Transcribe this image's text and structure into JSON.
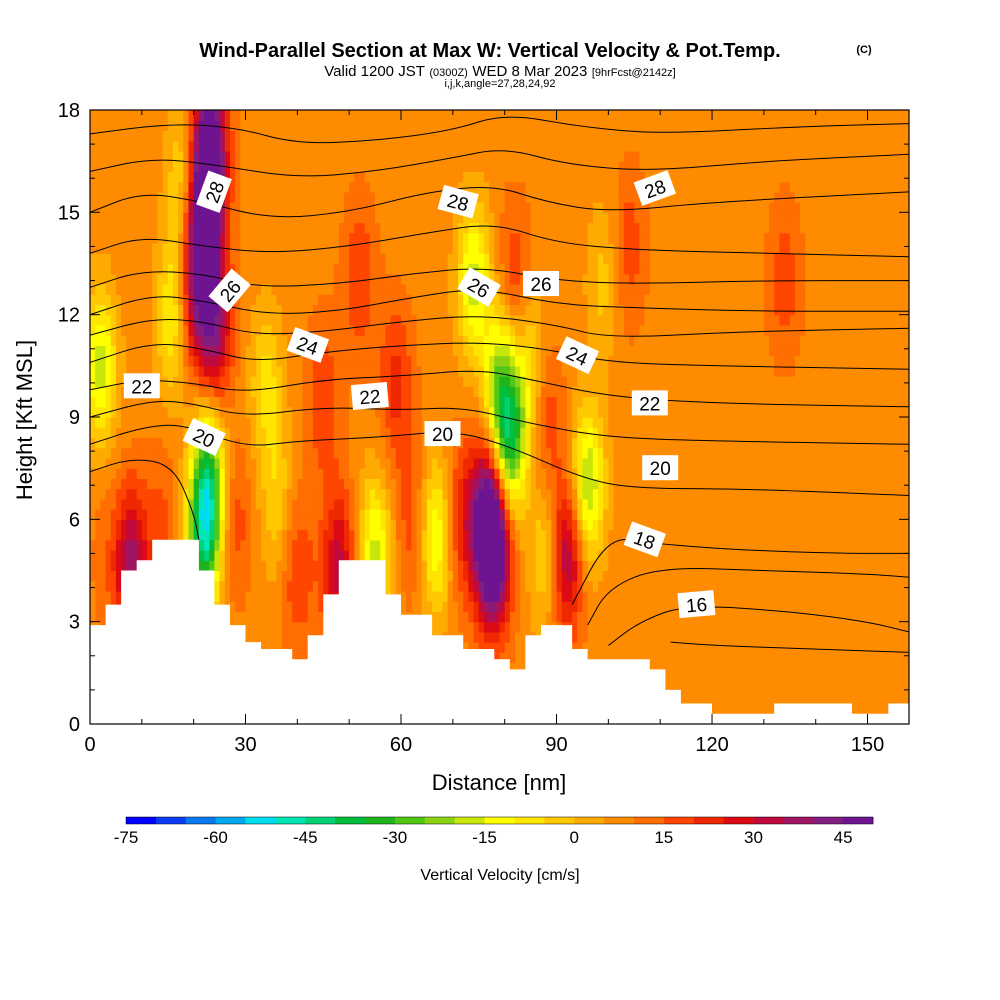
{
  "title": {
    "main": "Wind-Parallel Section at Max W: Vertical Velocity & Pot.Temp.",
    "main_suffix": "(C)",
    "valid_prefix": "Valid 1200 JST",
    "valid_utc": "(0300Z)",
    "valid_date": "WED 8 Mar 2023",
    "fcst": "[9hrFcst@2142z]",
    "ijk": "i,j,k,angle=27,28,24,92"
  },
  "chart_data": {
    "type": "heatmap",
    "xlabel": "Distance [nm]",
    "ylabel": "Height [Kft MSL]",
    "xlim": [
      0,
      158
    ],
    "ylim": [
      0,
      18
    ],
    "x_ticks": [
      "0",
      "30",
      "60",
      "90",
      "120",
      "150"
    ],
    "y_ticks": [
      "0",
      "3",
      "6",
      "9",
      "12",
      "15",
      "18"
    ],
    "x_tick_values": [
      0,
      30,
      60,
      90,
      120,
      150
    ],
    "y_tick_values": [
      0,
      3,
      6,
      9,
      12,
      15,
      18
    ],
    "colorbar": {
      "label": "Vertical Velocity [cm/s]",
      "min": -75,
      "max": 50,
      "step": 5,
      "tick_labels": [
        "-75",
        "-60",
        "-45",
        "-30",
        "-15",
        "0",
        "15",
        "30",
        "45"
      ],
      "tick_values": [
        -75,
        -60,
        -45,
        -30,
        -15,
        0,
        15,
        30,
        45
      ],
      "colors": [
        "#0000ff",
        "#0a3cf5",
        "#0a78f0",
        "#00a8f0",
        "#00dcf0",
        "#00e6b4",
        "#00d278",
        "#00be3c",
        "#1eb41e",
        "#50c814",
        "#8cd214",
        "#c8e60a",
        "#ffff00",
        "#ffe600",
        "#ffc800",
        "#ffaa00",
        "#ff8c00",
        "#ff6e00",
        "#ff4600",
        "#f02800",
        "#dc0a14",
        "#be0a3c",
        "#a01464",
        "#821e82",
        "#6e1491"
      ]
    },
    "updrafts": [
      {
        "x": 3,
        "y": 5.0,
        "w": 4
      },
      {
        "x": 8,
        "y": 4.6,
        "w": 30
      },
      {
        "x": 14,
        "y": 6.0,
        "w": 8
      },
      {
        "x": 20,
        "y": 12.5,
        "w": 20
      },
      {
        "x": 22,
        "y": 14.5,
        "w": 40
      },
      {
        "x": 23,
        "y": 16.8,
        "w": 50
      },
      {
        "x": 24,
        "y": 11.5,
        "w": 30
      },
      {
        "x": 28,
        "y": 6.0,
        "w": 10
      },
      {
        "x": 40,
        "y": 4.5,
        "w": 12
      },
      {
        "x": 45,
        "y": 9.5,
        "w": 12
      },
      {
        "x": 48,
        "y": 4.5,
        "w": 25
      },
      {
        "x": 52,
        "y": 13.0,
        "w": 12
      },
      {
        "x": 59,
        "y": 10.0,
        "w": 14
      },
      {
        "x": 62,
        "y": 6.0,
        "w": 10
      },
      {
        "x": 71,
        "y": 6.0,
        "w": 15
      },
      {
        "x": 76,
        "y": 6.0,
        "w": 30
      },
      {
        "x": 78,
        "y": 5.2,
        "w": 50
      },
      {
        "x": 82,
        "y": 13.0,
        "w": 12
      },
      {
        "x": 88,
        "y": 9.0,
        "w": 12
      },
      {
        "x": 92,
        "y": 5.0,
        "w": 30
      },
      {
        "x": 104,
        "y": 14.0,
        "w": 10
      },
      {
        "x": 134,
        "y": 13.0,
        "w": 10
      }
    ],
    "downdrafts": [
      {
        "x": 2,
        "y": 10.5,
        "w": -25
      },
      {
        "x": 16,
        "y": 12.0,
        "w": -20
      },
      {
        "x": 18,
        "y": 16.0,
        "w": -15
      },
      {
        "x": 22,
        "y": 5.6,
        "w": -45
      },
      {
        "x": 23,
        "y": 7.5,
        "w": -30
      },
      {
        "x": 34,
        "y": 10.0,
        "w": -15
      },
      {
        "x": 36,
        "y": 6.5,
        "w": -12
      },
      {
        "x": 55,
        "y": 5.0,
        "w": -25
      },
      {
        "x": 67,
        "y": 5.5,
        "w": -25
      },
      {
        "x": 74,
        "y": 13.0,
        "w": -25
      },
      {
        "x": 79,
        "y": 10.0,
        "w": -25
      },
      {
        "x": 81,
        "y": 8.3,
        "w": -40
      },
      {
        "x": 85,
        "y": 10.5,
        "w": -15
      },
      {
        "x": 88,
        "y": 5.0,
        "w": -15
      },
      {
        "x": 96,
        "y": 7.0,
        "w": -30
      },
      {
        "x": 99,
        "y": 13.0,
        "w": -10
      }
    ],
    "terrain": [
      [
        0,
        2.9
      ],
      [
        3,
        2.9
      ],
      [
        3,
        3.5
      ],
      [
        6,
        3.5
      ],
      [
        6,
        4.5
      ],
      [
        9,
        4.5
      ],
      [
        9,
        4.8
      ],
      [
        12,
        4.8
      ],
      [
        12,
        5.4
      ],
      [
        21,
        5.4
      ],
      [
        21,
        4.5
      ],
      [
        24,
        4.5
      ],
      [
        24,
        3.5
      ],
      [
        27,
        3.5
      ],
      [
        27,
        2.9
      ],
      [
        30,
        2.9
      ],
      [
        30,
        2.4
      ],
      [
        33,
        2.4
      ],
      [
        33,
        2.2
      ],
      [
        39,
        2.2
      ],
      [
        39,
        1.9
      ],
      [
        42,
        1.9
      ],
      [
        42,
        2.6
      ],
      [
        45,
        2.6
      ],
      [
        45,
        3.8
      ],
      [
        48,
        3.8
      ],
      [
        48,
        4.8
      ],
      [
        57,
        4.8
      ],
      [
        57,
        3.8
      ],
      [
        60,
        3.8
      ],
      [
        60,
        3.2
      ],
      [
        66,
        3.2
      ],
      [
        66,
        2.6
      ],
      [
        72,
        2.6
      ],
      [
        72,
        2.2
      ],
      [
        78,
        2.2
      ],
      [
        78,
        1.9
      ],
      [
        81,
        1.9
      ],
      [
        81,
        1.6
      ],
      [
        84,
        1.6
      ],
      [
        84,
        2.6
      ],
      [
        87,
        2.6
      ],
      [
        87,
        2.9
      ],
      [
        93,
        2.9
      ],
      [
        93,
        2.2
      ],
      [
        96,
        2.2
      ],
      [
        96,
        1.9
      ],
      [
        108,
        1.9
      ],
      [
        108,
        1.6
      ],
      [
        111,
        1.6
      ],
      [
        111,
        1.0
      ],
      [
        114,
        1.0
      ],
      [
        114,
        0.6
      ],
      [
        120,
        0.6
      ],
      [
        120,
        0.3
      ],
      [
        132,
        0.3
      ],
      [
        132,
        0.6
      ],
      [
        147,
        0.6
      ],
      [
        147,
        0.3
      ],
      [
        154,
        0.3
      ],
      [
        154,
        0.6
      ],
      [
        158,
        0.6
      ]
    ],
    "theta_contours": [
      {
        "value": 15,
        "points": [
          [
            112,
            2.4
          ],
          [
            120,
            2.3
          ],
          [
            140,
            2.2
          ],
          [
            158,
            2.1
          ]
        ]
      },
      {
        "value": 16,
        "points": [
          [
            100,
            2.3
          ],
          [
            106,
            3.0
          ],
          [
            115,
            3.5
          ],
          [
            135,
            3.3
          ],
          [
            150,
            3.0
          ],
          [
            158,
            2.7
          ]
        ]
      },
      {
        "value": 17,
        "points": [
          [
            96,
            2.9
          ],
          [
            100,
            4.0
          ],
          [
            110,
            4.6
          ],
          [
            130,
            4.5
          ],
          [
            150,
            4.4
          ],
          [
            158,
            4.3
          ]
        ]
      },
      {
        "value": 18,
        "points": [
          [
            93,
            3.5
          ],
          [
            100,
            5.5
          ],
          [
            108,
            5.3
          ],
          [
            125,
            5.1
          ],
          [
            145,
            5.0
          ],
          [
            158,
            5.0
          ]
        ]
      },
      {
        "value": 19,
        "points": [
          [
            0,
            7.4
          ],
          [
            8,
            7.8
          ],
          [
            16,
            7.6
          ],
          [
            20,
            6.2
          ],
          [
            21,
            5.4
          ]
        ]
      },
      {
        "value": 20,
        "points": [
          [
            0,
            8.2
          ],
          [
            10,
            8.7
          ],
          [
            18,
            8.8
          ],
          [
            30,
            8.1
          ],
          [
            40,
            8.3
          ],
          [
            55,
            8.4
          ],
          [
            70,
            8.6
          ],
          [
            80,
            8.2
          ],
          [
            95,
            7.2
          ],
          [
            105,
            6.9
          ],
          [
            125,
            6.9
          ],
          [
            158,
            6.7
          ]
        ]
      },
      {
        "value": 21,
        "points": [
          [
            0,
            9.0
          ],
          [
            12,
            9.5
          ],
          [
            20,
            9.4
          ],
          [
            30,
            9.0
          ],
          [
            45,
            9.3
          ],
          [
            60,
            9.2
          ],
          [
            72,
            9.3
          ],
          [
            85,
            8.8
          ],
          [
            100,
            8.4
          ],
          [
            120,
            8.3
          ],
          [
            158,
            8.2
          ]
        ]
      },
      {
        "value": 22,
        "points": [
          [
            0,
            9.8
          ],
          [
            10,
            10.1
          ],
          [
            20,
            10.0
          ],
          [
            30,
            9.7
          ],
          [
            45,
            10.1
          ],
          [
            60,
            10.2
          ],
          [
            75,
            10.4
          ],
          [
            85,
            10.1
          ],
          [
            100,
            9.6
          ],
          [
            120,
            9.4
          ],
          [
            158,
            9.3
          ]
        ]
      },
      {
        "value": 23,
        "points": [
          [
            0,
            10.6
          ],
          [
            12,
            11.2
          ],
          [
            22,
            11.0
          ],
          [
            32,
            10.6
          ],
          [
            45,
            10.9
          ],
          [
            60,
            11.1
          ],
          [
            75,
            11.2
          ],
          [
            88,
            11.0
          ],
          [
            100,
            10.6
          ],
          [
            120,
            10.5
          ],
          [
            158,
            10.4
          ]
        ]
      },
      {
        "value": 24,
        "points": [
          [
            0,
            11.4
          ],
          [
            12,
            11.9
          ],
          [
            22,
            11.8
          ],
          [
            32,
            11.4
          ],
          [
            45,
            11.5
          ],
          [
            60,
            11.8
          ],
          [
            75,
            12.0
          ],
          [
            90,
            11.7
          ],
          [
            100,
            11.3
          ],
          [
            125,
            11.5
          ],
          [
            158,
            11.6
          ]
        ]
      },
      {
        "value": 25,
        "points": [
          [
            0,
            12.0
          ],
          [
            12,
            12.6
          ],
          [
            22,
            12.4
          ],
          [
            34,
            12.0
          ],
          [
            48,
            12.1
          ],
          [
            62,
            12.5
          ],
          [
            75,
            12.8
          ],
          [
            90,
            12.3
          ],
          [
            105,
            12.2
          ],
          [
            130,
            12.1
          ],
          [
            158,
            12.1
          ]
        ]
      },
      {
        "value": 26,
        "points": [
          [
            0,
            12.8
          ],
          [
            10,
            13.3
          ],
          [
            22,
            13.2
          ],
          [
            32,
            12.8
          ],
          [
            48,
            12.9
          ],
          [
            62,
            13.2
          ],
          [
            76,
            13.4
          ],
          [
            90,
            13.0
          ],
          [
            105,
            12.9
          ],
          [
            130,
            13.0
          ],
          [
            158,
            13.0
          ]
        ]
      },
      {
        "value": 27,
        "points": [
          [
            0,
            13.8
          ],
          [
            10,
            14.3
          ],
          [
            22,
            14.0
          ],
          [
            35,
            13.8
          ],
          [
            50,
            14.0
          ],
          [
            65,
            14.4
          ],
          [
            78,
            14.7
          ],
          [
            90,
            14.1
          ],
          [
            105,
            13.9
          ],
          [
            130,
            13.8
          ],
          [
            158,
            13.7
          ]
        ]
      },
      {
        "value": 28,
        "points": [
          [
            0,
            15.0
          ],
          [
            10,
            15.6
          ],
          [
            22,
            15.3
          ],
          [
            35,
            14.8
          ],
          [
            50,
            15.0
          ],
          [
            65,
            15.6
          ],
          [
            78,
            15.8
          ],
          [
            88,
            15.3
          ],
          [
            100,
            15.0
          ],
          [
            120,
            15.3
          ],
          [
            158,
            15.6
          ]
        ]
      },
      {
        "value": 29,
        "points": [
          [
            0,
            16.2
          ],
          [
            12,
            16.6
          ],
          [
            24,
            16.4
          ],
          [
            40,
            16.0
          ],
          [
            55,
            16.2
          ],
          [
            70,
            16.6
          ],
          [
            80,
            16.9
          ],
          [
            92,
            16.4
          ],
          [
            108,
            16.2
          ],
          [
            130,
            16.5
          ],
          [
            158,
            16.7
          ]
        ]
      },
      {
        "value": 30,
        "points": [
          [
            0,
            17.3
          ],
          [
            15,
            17.6
          ],
          [
            28,
            17.5
          ],
          [
            40,
            17.0
          ],
          [
            55,
            17.1
          ],
          [
            70,
            17.4
          ],
          [
            80,
            17.9
          ],
          [
            95,
            17.5
          ],
          [
            110,
            17.3
          ],
          [
            135,
            17.5
          ],
          [
            158,
            17.6
          ]
        ]
      }
    ],
    "contour_labels": [
      {
        "text": "28",
        "x": 24,
        "y": 15.6,
        "angle": -70
      },
      {
        "text": "28",
        "x": 71,
        "y": 15.3,
        "angle": 15
      },
      {
        "text": "28",
        "x": 109,
        "y": 15.7,
        "angle": -20
      },
      {
        "text": "26",
        "x": 27,
        "y": 12.7,
        "angle": -50
      },
      {
        "text": "26",
        "x": 75,
        "y": 12.8,
        "angle": 30
      },
      {
        "text": "26",
        "x": 87,
        "y": 12.9,
        "angle": 0
      },
      {
        "text": "24",
        "x": 42,
        "y": 11.1,
        "angle": 20
      },
      {
        "text": "24",
        "x": 94,
        "y": 10.8,
        "angle": 25
      },
      {
        "text": "22",
        "x": 10,
        "y": 9.9,
        "angle": 0
      },
      {
        "text": "22",
        "x": 54,
        "y": 9.6,
        "angle": -5
      },
      {
        "text": "22",
        "x": 108,
        "y": 9.4,
        "angle": 0
      },
      {
        "text": "20",
        "x": 22,
        "y": 8.4,
        "angle": 25
      },
      {
        "text": "20",
        "x": 68,
        "y": 8.5,
        "angle": 0
      },
      {
        "text": "20",
        "x": 110,
        "y": 7.5,
        "angle": 0
      },
      {
        "text": "18",
        "x": 107,
        "y": 5.4,
        "angle": 20
      },
      {
        "text": "16",
        "x": 117,
        "y": 3.5,
        "angle": -5
      }
    ]
  }
}
